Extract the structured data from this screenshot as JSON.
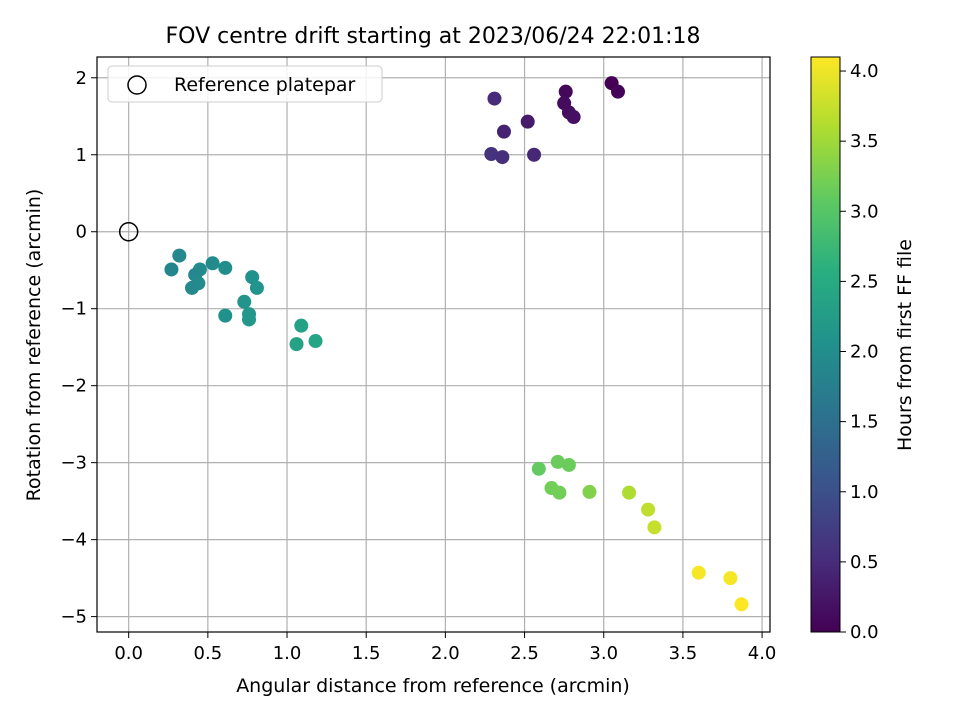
{
  "chart_data": {
    "type": "scatter",
    "title": "FOV centre drift starting at 2023/06/24 22:01:18",
    "xlabel": "Angular distance from reference (arcmin)",
    "ylabel": "Rotation from reference (arcmin)",
    "xlim": [
      -0.2,
      4.05
    ],
    "ylim": [
      -5.2,
      2.27
    ],
    "xticks": [
      0.0,
      0.5,
      1.0,
      1.5,
      2.0,
      2.5,
      3.0,
      3.5,
      4.0
    ],
    "xtick_labels": [
      "0.0",
      "0.5",
      "1.0",
      "1.5",
      "2.0",
      "2.5",
      "3.0",
      "3.5",
      "4.0"
    ],
    "yticks": [
      2,
      1,
      0,
      -1,
      -2,
      -3,
      -4,
      -5
    ],
    "ytick_labels": [
      "2",
      "1",
      "0",
      "−1",
      "−2",
      "−3",
      "−4",
      "−5"
    ],
    "grid": true,
    "legend": {
      "placement": "top-left",
      "entries": [
        "Reference platepar"
      ]
    },
    "reference_point": {
      "x": 0.0,
      "y": 0.0,
      "marker": "hollow-circle"
    },
    "colorbar": {
      "label": "Hours from first FF file",
      "range": [
        0.0,
        4.1
      ],
      "ticks": [
        0.0,
        0.5,
        1.0,
        1.5,
        2.0,
        2.5,
        3.0,
        3.5,
        4.0
      ],
      "tick_labels": [
        "0.0",
        "0.5",
        "1.0",
        "1.5",
        "2.0",
        "2.5",
        "3.0",
        "3.5",
        "4.0"
      ],
      "colormap": "viridis"
    },
    "points": [
      {
        "x": 3.05,
        "y": 1.93,
        "c": 0.0
      },
      {
        "x": 3.09,
        "y": 1.82,
        "c": 0.05
      },
      {
        "x": 2.76,
        "y": 1.82,
        "c": 0.08
      },
      {
        "x": 2.75,
        "y": 1.67,
        "c": 0.12
      },
      {
        "x": 2.78,
        "y": 1.55,
        "c": 0.15
      },
      {
        "x": 2.81,
        "y": 1.49,
        "c": 0.18
      },
      {
        "x": 2.52,
        "y": 1.43,
        "c": 0.3
      },
      {
        "x": 2.37,
        "y": 1.3,
        "c": 0.4
      },
      {
        "x": 2.31,
        "y": 1.73,
        "c": 0.5
      },
      {
        "x": 2.56,
        "y": 1.0,
        "c": 0.45
      },
      {
        "x": 2.29,
        "y": 1.01,
        "c": 0.6
      },
      {
        "x": 2.36,
        "y": 0.97,
        "c": 0.55
      },
      {
        "x": 0.32,
        "y": -0.31,
        "c": 1.9
      },
      {
        "x": 0.27,
        "y": -0.49,
        "c": 1.85
      },
      {
        "x": 0.53,
        "y": -0.41,
        "c": 1.95
      },
      {
        "x": 0.61,
        "y": -0.47,
        "c": 2.0
      },
      {
        "x": 0.45,
        "y": -0.49,
        "c": 1.95
      },
      {
        "x": 0.42,
        "y": -0.56,
        "c": 1.9
      },
      {
        "x": 0.44,
        "y": -0.67,
        "c": 1.95
      },
      {
        "x": 0.4,
        "y": -0.73,
        "c": 1.9
      },
      {
        "x": 0.78,
        "y": -0.59,
        "c": 2.05
      },
      {
        "x": 0.81,
        "y": -0.73,
        "c": 2.1
      },
      {
        "x": 0.73,
        "y": -0.91,
        "c": 2.1
      },
      {
        "x": 0.61,
        "y": -1.09,
        "c": 2.05
      },
      {
        "x": 0.76,
        "y": -1.07,
        "c": 2.15
      },
      {
        "x": 0.76,
        "y": -1.14,
        "c": 2.15
      },
      {
        "x": 1.09,
        "y": -1.22,
        "c": 2.35
      },
      {
        "x": 1.18,
        "y": -1.42,
        "c": 2.4
      },
      {
        "x": 1.06,
        "y": -1.46,
        "c": 2.35
      },
      {
        "x": 2.59,
        "y": -3.08,
        "c": 3.1
      },
      {
        "x": 2.71,
        "y": -2.99,
        "c": 3.15
      },
      {
        "x": 2.78,
        "y": -3.03,
        "c": 3.15
      },
      {
        "x": 2.67,
        "y": -3.33,
        "c": 3.2
      },
      {
        "x": 2.72,
        "y": -3.39,
        "c": 3.2
      },
      {
        "x": 2.91,
        "y": -3.38,
        "c": 3.3
      },
      {
        "x": 3.16,
        "y": -3.39,
        "c": 3.6
      },
      {
        "x": 3.28,
        "y": -3.61,
        "c": 3.7
      },
      {
        "x": 3.32,
        "y": -3.84,
        "c": 3.75
      },
      {
        "x": 3.6,
        "y": -4.43,
        "c": 4.05
      },
      {
        "x": 3.8,
        "y": -4.5,
        "c": 4.05
      },
      {
        "x": 3.87,
        "y": -4.84,
        "c": 4.1
      }
    ]
  }
}
